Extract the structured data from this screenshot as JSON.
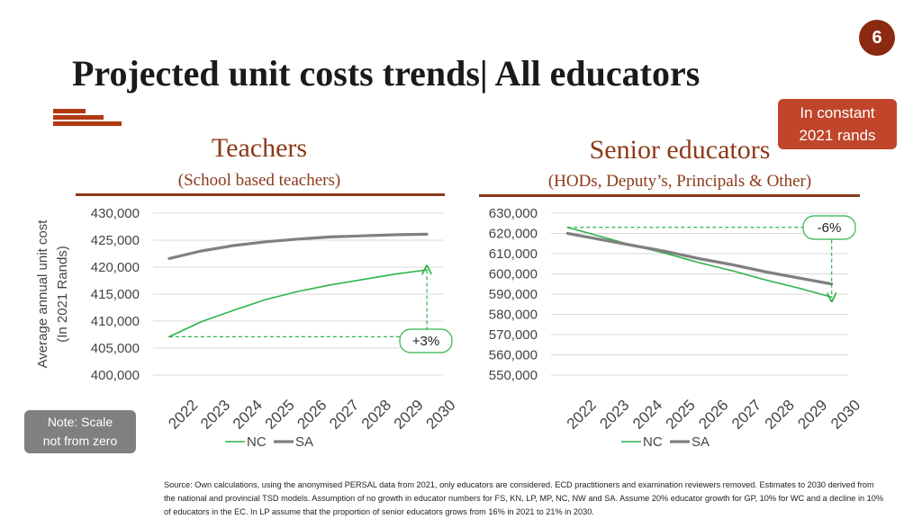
{
  "page_number": "6",
  "title": "Projected unit costs trends| All educators",
  "badge": {
    "line1": "In constant",
    "line2": "2021 rands"
  },
  "scale_note": {
    "line1": "Note: Scale",
    "line2": "not from zero"
  },
  "source": "Source: Own calculations, using the anonymised PERSAL data from 2021, only educators are considered. ECD practitioners and examination reviewers removed. Estimates to 2030 derived from the national and provincial TSD models. Assumption of no growth in educator numbers for FS, KN, LP, MP, NC, NW and SA. Assume 20% educator growth for GP, 10% for WC and a decline in 10% of educators in the EC. In LP assume that the proportion of senior educators grows from 16% in 2021 to 21% in 2030.",
  "colors": {
    "nc": "#2db34a",
    "sa": "#808080",
    "accent": "#8b3a1a"
  },
  "chart_data": [
    {
      "type": "line",
      "title": "Teachers",
      "subtitle": "(School based teachers)",
      "ylabel": "Average annual unit cost (In 2021 Rands)",
      "x": [
        "2022",
        "2023",
        "2024",
        "2025",
        "2026",
        "2027",
        "2028",
        "2029",
        "2030"
      ],
      "ylim": [
        400000,
        430000
      ],
      "yticks": [
        "400,000",
        "405,000",
        "410,000",
        "415,000",
        "420,000",
        "425,000",
        "430,000"
      ],
      "series": [
        {
          "name": "NC",
          "values": [
            407100,
            409900,
            412000,
            414000,
            415500,
            416700,
            417700,
            418700,
            419500
          ]
        },
        {
          "name": "SA",
          "values": [
            421600,
            423000,
            424000,
            424700,
            425200,
            425600,
            425800,
            426000,
            426100
          ]
        }
      ],
      "annotation": "+3%",
      "legend": "bottom",
      "grid": true
    },
    {
      "type": "line",
      "title": "Senior educators",
      "subtitle": "(HODs, Deputy’s, Principals & Other)",
      "ylabel": "",
      "x": [
        "2022",
        "2023",
        "2024",
        "2025",
        "2026",
        "2027",
        "2028",
        "2029",
        "2030"
      ],
      "ylim": [
        550000,
        630000
      ],
      "yticks": [
        "550,000",
        "560,000",
        "570,000",
        "580,000",
        "590,000",
        "600,000",
        "610,000",
        "620,000",
        "630,000"
      ],
      "series": [
        {
          "name": "NC",
          "values": [
            623000,
            618500,
            614000,
            610000,
            605500,
            601500,
            597000,
            593000,
            588500
          ]
        },
        {
          "name": "SA",
          "values": [
            620000,
            617000,
            614000,
            611000,
            607500,
            604500,
            601000,
            598000,
            595000
          ]
        }
      ],
      "annotation": "-6%",
      "legend": "bottom",
      "grid": true
    }
  ]
}
